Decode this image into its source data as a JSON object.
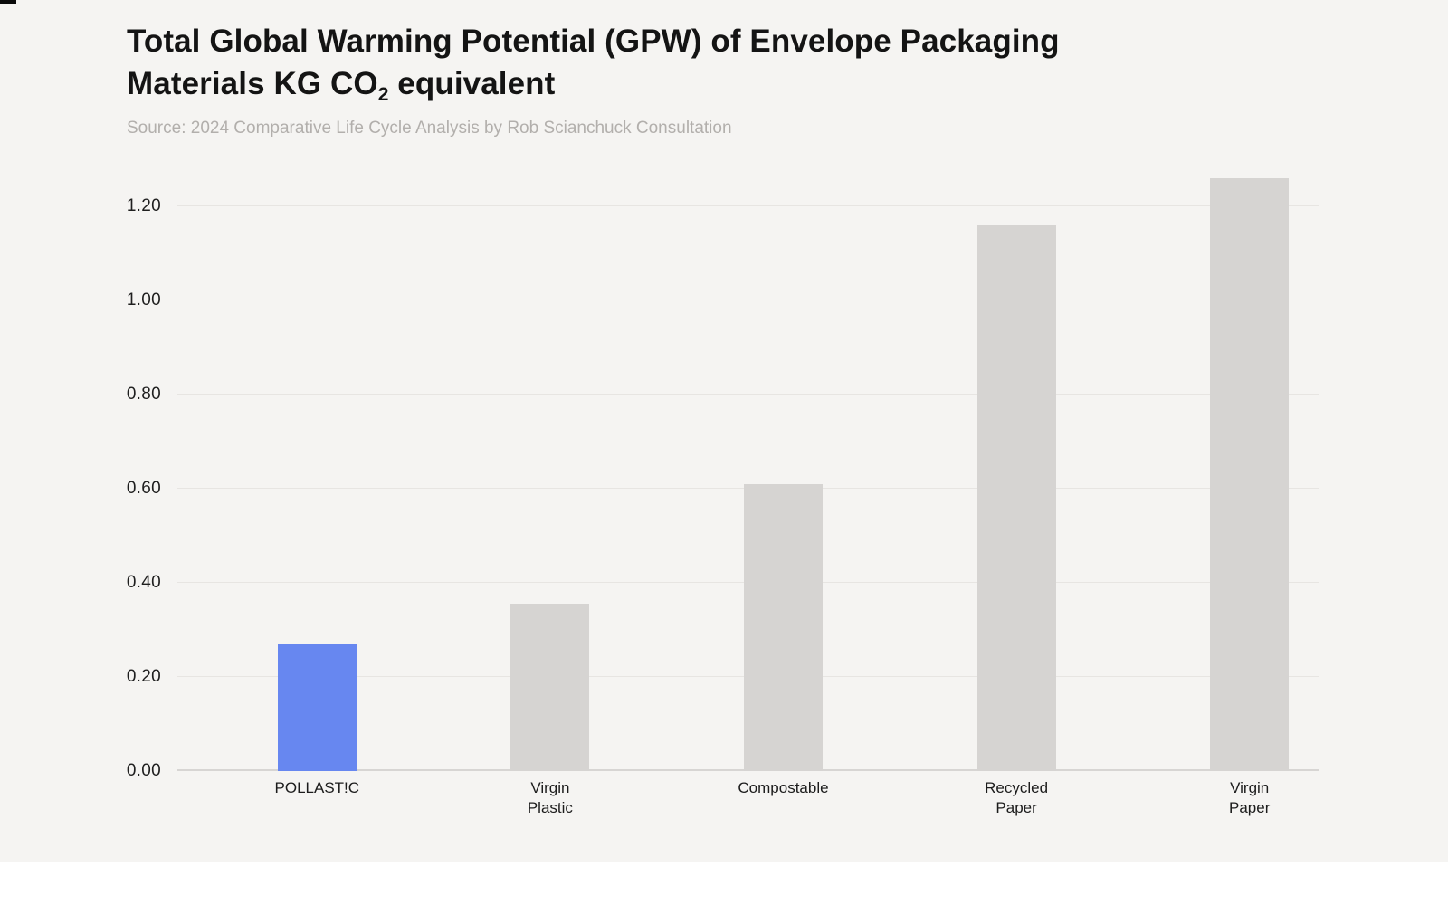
{
  "header": {
    "title_line1": "Total Global Warming Potential (GPW) of Envelope Packaging",
    "title_line2_pre": "Materials KG CO",
    "title_line2_sub": "2",
    "title_line2_post": " equivalent",
    "source": "Source: 2024 Comparative Life Cycle Analysis by Rob Scianchuck Consultation"
  },
  "colors": {
    "canvas_background": "#f5f4f2",
    "page_background": "#ffffff",
    "accent_blue": "#6787f0",
    "bar_gray": "#d6d4d2",
    "gridline": "#e7e5e2",
    "baseline": "#d7d5d3",
    "title_text": "#141414",
    "tick_text": "#1f1f1f",
    "source_text": "#b2afac"
  },
  "chart_data": {
    "type": "bar",
    "title": "Total Global Warming Potential (GPW) of Envelope Packaging Materials KG CO2 equivalent",
    "source": "Source: 2024 Comparative Life Cycle Analysis by Rob Scianchuck Consultation",
    "categories": [
      "POLLAST!C",
      "Virgin Plastic",
      "Compostable",
      "Recycled Paper",
      "Virgin Paper"
    ],
    "category_lines": [
      [
        "POLLAST!C"
      ],
      [
        "Virgin",
        "Plastic"
      ],
      [
        "Compostable"
      ],
      [
        "Recycled",
        "Paper"
      ],
      [
        "Virgin",
        "Paper"
      ]
    ],
    "values": [
      0.27,
      0.355,
      0.61,
      1.16,
      1.26
    ],
    "bar_colors": [
      "#6787f0",
      "#d6d4d2",
      "#d6d4d2",
      "#d6d4d2",
      "#d6d4d2"
    ],
    "yticks": [
      0.0,
      0.2,
      0.4,
      0.6,
      0.8,
      1.0,
      1.2
    ],
    "ytick_labels": [
      "0.00",
      "0.20",
      "0.40",
      "0.60",
      "0.80",
      "1.00",
      "1.20"
    ],
    "xlabel": "",
    "ylabel": "KG CO2 equivalent",
    "ylim": [
      0,
      1.29
    ],
    "grid": true,
    "legend": false
  }
}
